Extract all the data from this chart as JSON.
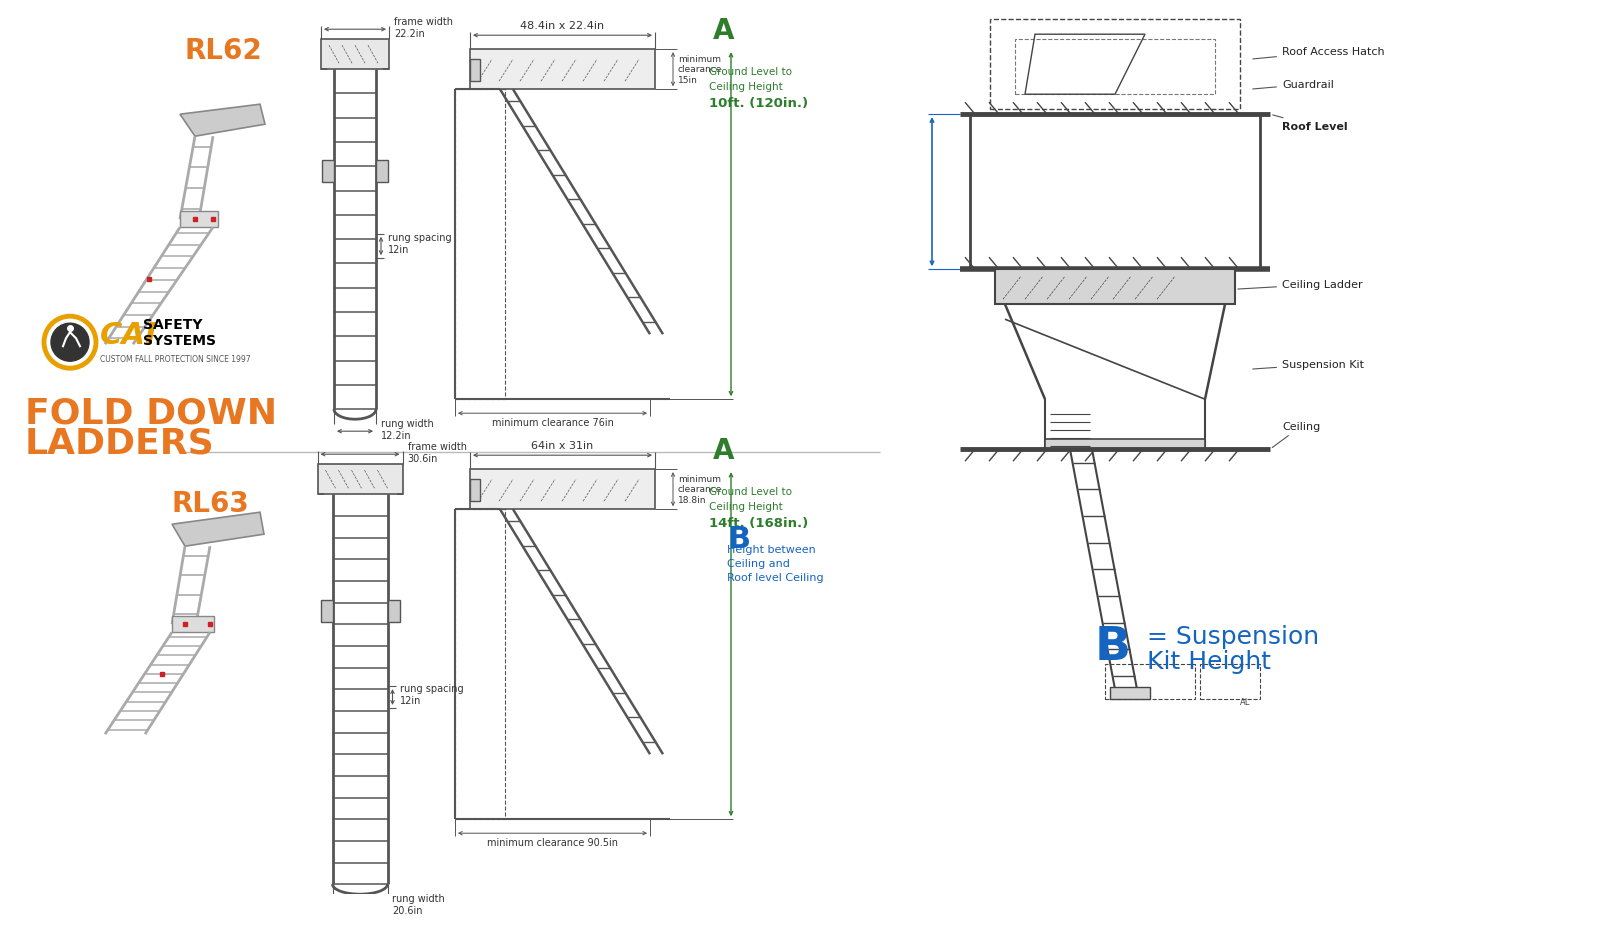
{
  "bg_color": "#ffffff",
  "orange_color": "#E87722",
  "green_color": "#2d7d2d",
  "blue_color": "#1565C0",
  "line_color": "#555555",
  "dim_color": "#333333",
  "rl62_label": "RL62",
  "rl63_label": "RL63",
  "fold_line1": "FOLD DOWN",
  "fold_line2": "LADDERS",
  "rl62_frame_width_lbl": "frame width\n22.2in",
  "rl62_rung_spacing_lbl": "rung spacing\n12in",
  "rl62_rung_width_lbl": "rung width\n12.2in",
  "rl63_frame_width_lbl": "frame width\n30.6in",
  "rl63_rung_spacing_lbl": "rung spacing\n12in",
  "rl63_rung_width_lbl": "rung width\n20.6in",
  "rl62_frame_dim": "48.4in x 22.4in",
  "rl63_frame_dim": "64in x 31in",
  "rl62_min_top": "minimum\nclearance\n15in",
  "rl62_min_bot": "minimum clearance 76in",
  "rl63_min_top": "minimum\nclearance\n18.8in",
  "rl63_min_bot": "minimum clearance 90.5in",
  "A_label": "A",
  "A_rl62_line1": "Ground Level to",
  "A_rl62_line2": "Ceiling Height",
  "A_rl62_line3": "10ft. (120in.)",
  "A_rl63_line1": "Ground Level to",
  "A_rl63_line2": "Ceiling Height",
  "A_rl63_line3": "14ft. (168in.)",
  "B_label": "B",
  "B_line1": "Height between",
  "B_line2": "Ceiling and",
  "B_line3": "Roof level Ceiling",
  "B_eq_label": "B",
  "B_eq_line1": "= Suspension",
  "B_eq_line2": "Kit Height",
  "roof_access_label": "Roof Access Hatch",
  "guardrail_label": "Guardrail",
  "roof_level_label": "Roof Level",
  "ceiling_ladder_label": "Ceiling Ladder",
  "suspension_kit_label": "Suspension Kit",
  "ceiling_label": "Ceiling",
  "cai_text": "CAI",
  "safety_text": "SAFETY\nSYSTEMS",
  "custom_text": "CUSTOM FALL PROTECTION SINCE 1997"
}
